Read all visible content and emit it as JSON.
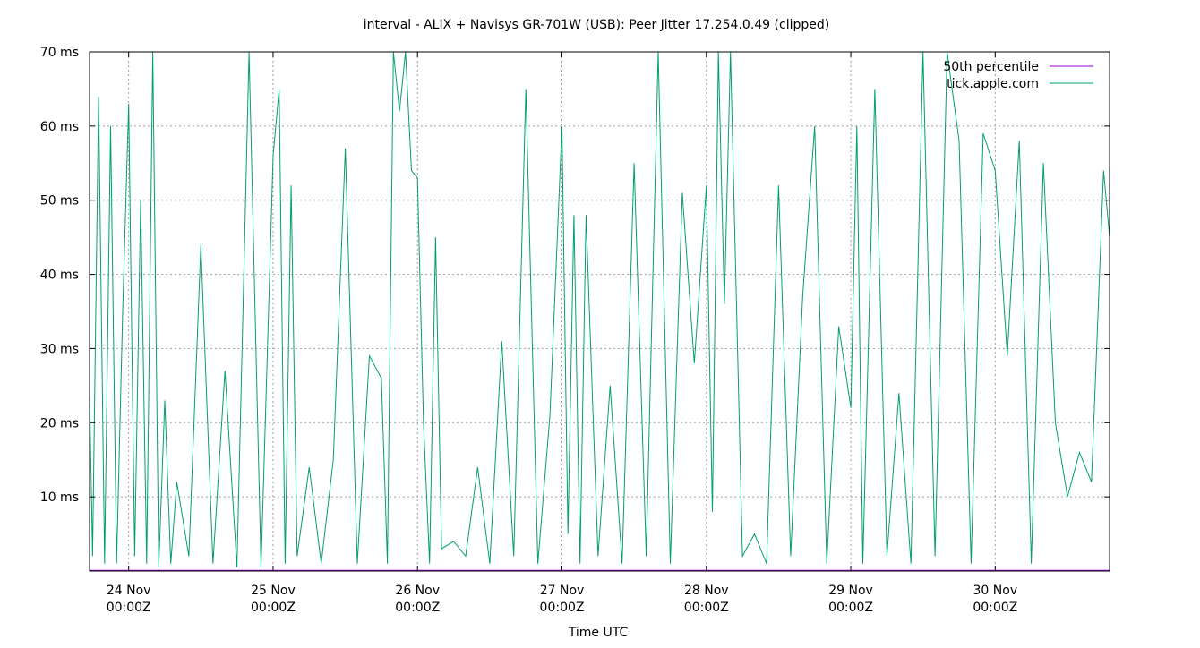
{
  "chart_data": {
    "type": "line",
    "title": "interval - ALIX + Navisys GR-701W (USB): Peer Jitter 17.254.0.49 (clipped)",
    "xlabel": "Time UTC",
    "ylabel": "",
    "xlim": [
      "2016-11-23 17:30",
      "2016-11-30 19:00"
    ],
    "ylim": [
      0,
      70
    ],
    "x_ticks": [
      {
        "line1": "24 Nov",
        "line2": "00:00Z",
        "x": "2016-11-24 00:00"
      },
      {
        "line1": "25 Nov",
        "line2": "00:00Z",
        "x": "2016-11-25 00:00"
      },
      {
        "line1": "26 Nov",
        "line2": "00:00Z",
        "x": "2016-11-26 00:00"
      },
      {
        "line1": "27 Nov",
        "line2": "00:00Z",
        "x": "2016-11-27 00:00"
      },
      {
        "line1": "28 Nov",
        "line2": "00:00Z",
        "x": "2016-11-28 00:00"
      },
      {
        "line1": "29 Nov",
        "line2": "00:00Z",
        "x": "2016-11-29 00:00"
      },
      {
        "line1": "30 Nov",
        "line2": "00:00Z",
        "x": "2016-11-30 00:00"
      }
    ],
    "y_ticks": [
      {
        "label": "10 ms",
        "value": 10
      },
      {
        "label": "20 ms",
        "value": 20
      },
      {
        "label": "30 ms",
        "value": 30
      },
      {
        "label": "40 ms",
        "value": 40
      },
      {
        "label": "50 ms",
        "value": 50
      },
      {
        "label": "60 ms",
        "value": 60
      },
      {
        "label": "70 ms",
        "value": 70
      }
    ],
    "grid": true,
    "legend_position": "top-right",
    "series": [
      {
        "name": "50th percentile",
        "color": "#9400d3",
        "x": [
          "2016-11-23 17:30",
          "2016-11-30 19:00"
        ],
        "y": [
          0.1,
          0.1
        ]
      },
      {
        "name": "tick.apple.com",
        "color": "#009e73",
        "x": [
          "2016-11-23 17:30",
          "2016-11-23 18:00",
          "2016-11-23 19:00",
          "2016-11-23 20:00",
          "2016-11-23 21:00",
          "2016-11-23 22:00",
          "2016-11-23 23:00",
          "2016-11-24 00:00",
          "2016-11-24 01:00",
          "2016-11-24 02:00",
          "2016-11-24 03:00",
          "2016-11-24 04:00",
          "2016-11-24 05:00",
          "2016-11-24 06:00",
          "2016-11-24 07:00",
          "2016-11-24 08:00",
          "2016-11-24 10:00",
          "2016-11-24 12:00",
          "2016-11-24 14:00",
          "2016-11-24 16:00",
          "2016-11-24 18:00",
          "2016-11-24 20:00",
          "2016-11-24 22:00",
          "2016-11-25 00:00",
          "2016-11-25 01:00",
          "2016-11-25 02:00",
          "2016-11-25 03:00",
          "2016-11-25 04:00",
          "2016-11-25 06:00",
          "2016-11-25 08:00",
          "2016-11-25 10:00",
          "2016-11-25 12:00",
          "2016-11-25 14:00",
          "2016-11-25 16:00",
          "2016-11-25 18:00",
          "2016-11-25 19:00",
          "2016-11-25 20:00",
          "2016-11-25 21:00",
          "2016-11-25 22:00",
          "2016-11-25 23:00",
          "2016-11-26 00:00",
          "2016-11-26 01:00",
          "2016-11-26 02:00",
          "2016-11-26 03:00",
          "2016-11-26 04:00",
          "2016-11-26 06:00",
          "2016-11-26 08:00",
          "2016-11-26 10:00",
          "2016-11-26 12:00",
          "2016-11-26 14:00",
          "2016-11-26 16:00",
          "2016-11-26 18:00",
          "2016-11-26 20:00",
          "2016-11-26 22:00",
          "2016-11-27 00:00",
          "2016-11-27 01:00",
          "2016-11-27 02:00",
          "2016-11-27 03:00",
          "2016-11-27 04:00",
          "2016-11-27 06:00",
          "2016-11-27 08:00",
          "2016-11-27 10:00",
          "2016-11-27 12:00",
          "2016-11-27 14:00",
          "2016-11-27 16:00",
          "2016-11-27 18:00",
          "2016-11-27 20:00",
          "2016-11-27 22:00",
          "2016-11-28 00:00",
          "2016-11-28 01:00",
          "2016-11-28 02:00",
          "2016-11-28 03:00",
          "2016-11-28 04:00",
          "2016-11-28 06:00",
          "2016-11-28 08:00",
          "2016-11-28 10:00",
          "2016-11-28 12:00",
          "2016-11-28 14:00",
          "2016-11-28 16:00",
          "2016-11-28 18:00",
          "2016-11-28 20:00",
          "2016-11-28 22:00",
          "2016-11-29 00:00",
          "2016-11-29 01:00",
          "2016-11-29 02:00",
          "2016-11-29 04:00",
          "2016-11-29 06:00",
          "2016-11-29 08:00",
          "2016-11-29 10:00",
          "2016-11-29 12:00",
          "2016-11-29 14:00",
          "2016-11-29 16:00",
          "2016-11-29 18:00",
          "2016-11-29 20:00",
          "2016-11-29 22:00",
          "2016-11-30 00:00",
          "2016-11-30 02:00",
          "2016-11-30 04:00",
          "2016-11-30 06:00",
          "2016-11-30 08:00",
          "2016-11-30 10:00",
          "2016-11-30 12:00",
          "2016-11-30 14:00",
          "2016-11-30 16:00",
          "2016-11-30 18:00",
          "2016-11-30 19:00"
        ],
        "y": [
          24,
          2,
          64,
          1,
          60,
          1,
          35,
          63,
          2,
          50,
          1,
          70,
          0.5,
          23,
          1,
          12,
          2,
          44,
          1,
          27,
          0.5,
          70,
          0.5,
          56,
          65,
          1,
          52,
          2,
          14,
          1,
          15,
          57,
          1,
          29,
          26,
          1,
          70,
          62,
          70,
          54,
          53,
          20,
          1,
          45,
          3,
          4,
          2,
          14,
          1,
          31,
          2,
          65,
          1,
          21,
          60,
          5,
          48,
          1,
          48,
          2,
          25,
          1,
          55,
          2,
          70,
          1,
          51,
          28,
          52,
          8,
          70,
          36,
          70,
          2,
          5,
          1,
          52,
          2,
          37,
          60,
          1,
          33,
          22,
          60,
          1,
          65,
          2,
          24,
          1,
          70,
          2,
          70,
          58,
          1,
          59,
          54,
          29,
          58,
          1,
          55,
          20,
          10,
          16,
          12,
          54,
          45
        ]
      }
    ]
  }
}
